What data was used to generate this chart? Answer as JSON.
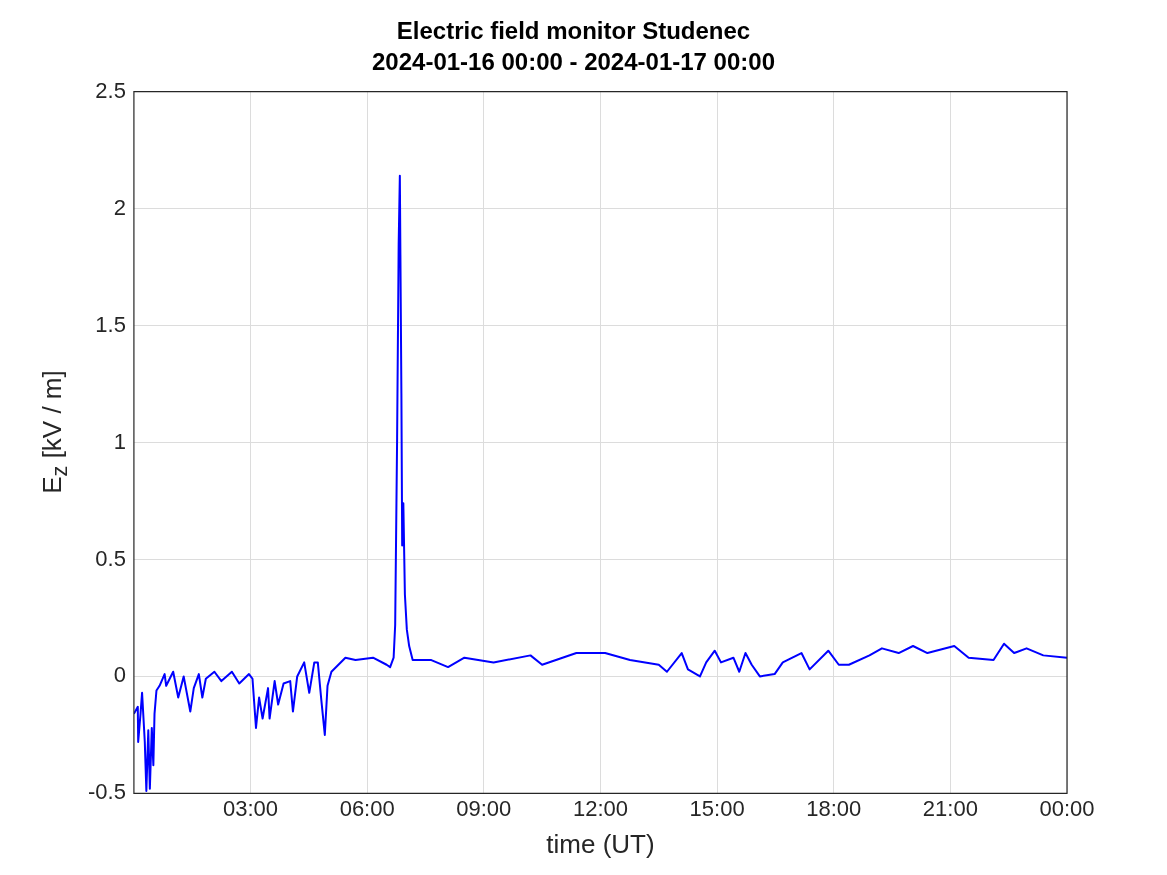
{
  "chart_data": {
    "type": "line",
    "title": "Electric field monitor Studenec",
    "subtitle": "2024-01-16 00:00 - 2024-01-17 00:00",
    "xlabel": "time (UT)",
    "ylabel": "E$_{z}$ [kV / m]",
    "xlim": [
      0,
      24
    ],
    "xticks": [
      {
        "value": 3,
        "label": "03:00"
      },
      {
        "value": 6,
        "label": "06:00"
      },
      {
        "value": 9,
        "label": "09:00"
      },
      {
        "value": 12,
        "label": "12:00"
      },
      {
        "value": 15,
        "label": "15:00"
      },
      {
        "value": 18,
        "label": "18:00"
      },
      {
        "value": 21,
        "label": "21:00"
      },
      {
        "value": 24,
        "label": "00:00"
      }
    ],
    "ylim": [
      -0.5,
      2.5
    ],
    "yticks": [
      -0.5,
      0,
      0.5,
      1,
      1.5,
      2,
      2.5
    ],
    "grid": true,
    "legend": false,
    "marker": "none",
    "line_style": "solid",
    "series": [
      {
        "color": "#0000ff",
        "x": [
          0.0,
          0.1,
          0.11,
          0.17,
          0.21,
          0.28,
          0.32,
          0.37,
          0.41,
          0.46,
          0.5,
          0.53,
          0.58,
          0.66,
          0.79,
          0.83,
          1.01,
          1.14,
          1.28,
          1.45,
          1.54,
          1.67,
          1.76,
          1.85,
          2.07,
          2.25,
          2.52,
          2.71,
          2.96,
          3.05,
          3.14,
          3.22,
          3.31,
          3.45,
          3.49,
          3.62,
          3.71,
          3.85,
          4.02,
          4.09,
          4.2,
          4.38,
          4.51,
          4.64,
          4.73,
          4.82,
          4.91,
          4.98,
          5.08,
          5.26,
          5.44,
          5.7,
          6.15,
          6.5,
          6.59,
          6.68,
          6.72,
          6.77,
          6.81,
          6.84,
          6.88,
          6.9,
          6.93,
          6.97,
          7.02,
          7.08,
          7.17,
          7.65,
          8.08,
          8.5,
          9.25,
          10.2,
          10.5,
          11.38,
          12.12,
          12.76,
          13.5,
          13.71,
          14.09,
          14.25,
          14.56,
          14.72,
          14.94,
          15.1,
          15.42,
          15.57,
          15.73,
          15.89,
          16.1,
          16.48,
          16.69,
          17.17,
          17.38,
          17.86,
          18.13,
          18.39,
          18.92,
          19.24,
          19.67,
          20.04,
          20.41,
          21.1,
          21.47,
          22.11,
          22.38,
          22.64,
          22.96,
          23.39,
          24
        ],
        "values": [
          -0.16,
          -0.13,
          -0.28,
          -0.16,
          -0.07,
          -0.28,
          -0.49,
          -0.23,
          -0.48,
          -0.22,
          -0.38,
          -0.16,
          -0.06,
          -0.04,
          0.01,
          -0.04,
          0.02,
          -0.09,
          0,
          -0.15,
          -0.05,
          0.01,
          -0.09,
          -0.01,
          0.02,
          -0.02,
          0.02,
          -0.03,
          0.01,
          -0.01,
          -0.22,
          -0.09,
          -0.18,
          -0.05,
          -0.18,
          -0.02,
          -0.12,
          -0.03,
          -0.02,
          -0.15,
          0,
          0.06,
          -0.07,
          0.06,
          0.06,
          -0.1,
          -0.25,
          -0.04,
          0.02,
          0.05,
          0.08,
          0.07,
          0.08,
          0.05,
          0.04,
          0.08,
          0.22,
          1.02,
          1.85,
          2.14,
          1.21,
          0.56,
          0.74,
          0.35,
          0.2,
          0.13,
          0.07,
          0.07,
          0.04,
          0.08,
          0.06,
          0.09,
          0.05,
          0.1,
          0.1,
          0.07,
          0.05,
          0.02,
          0.1,
          0.03,
          0,
          0.06,
          0.11,
          0.06,
          0.08,
          0.02,
          0.1,
          0.05,
          0,
          0.01,
          0.06,
          0.1,
          0.03,
          0.11,
          0.05,
          0.05,
          0.09,
          0.12,
          0.1,
          0.13,
          0.1,
          0.13,
          0.08,
          0.07,
          0.14,
          0.1,
          0.12,
          0.09,
          0.08
        ]
      }
    ]
  }
}
